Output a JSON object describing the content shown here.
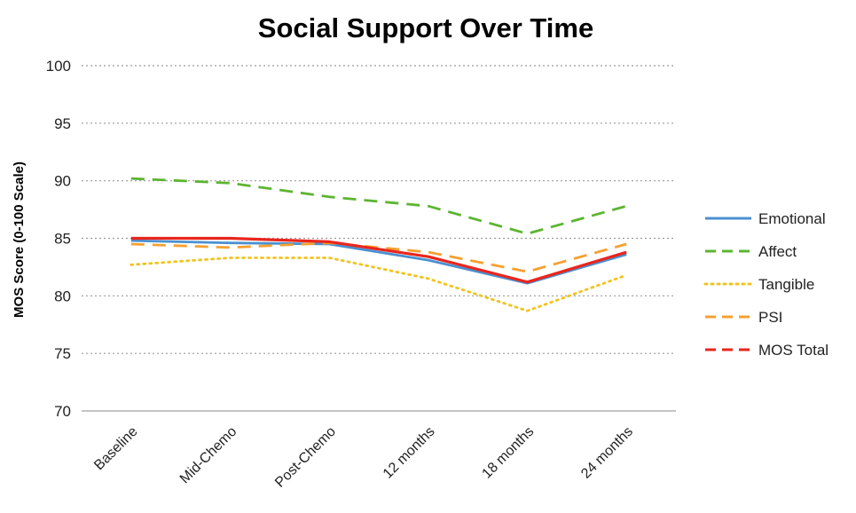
{
  "chart_data": {
    "type": "line",
    "title": "Social Support Over Time",
    "xlabel": "",
    "ylabel": "MOS Score (0-100 Scale)",
    "ylim": [
      70,
      100
    ],
    "yticks": [
      70,
      75,
      80,
      85,
      90,
      95,
      100
    ],
    "categories": [
      "Baseline",
      "Mid-Chemo",
      "Post-Chemo",
      "12 months",
      "18 months",
      "24 months"
    ],
    "grid": true,
    "legend_position": "right",
    "series": [
      {
        "name": "Emotional",
        "color": "#4a90d0",
        "dash": "solid",
        "values": [
          84.8,
          84.6,
          84.5,
          83.1,
          81.1,
          83.6
        ]
      },
      {
        "name": "Affect",
        "color": "#5cb531",
        "dash": "dashed",
        "values": [
          90.2,
          89.8,
          88.6,
          87.8,
          85.4,
          87.8
        ]
      },
      {
        "name": "Tangible",
        "color": "#f2c31e",
        "dash": "dotted",
        "values": [
          82.7,
          83.3,
          83.3,
          81.5,
          78.7,
          81.8
        ]
      },
      {
        "name": "PSI",
        "color": "#f5a030",
        "dash": "dashed",
        "values": [
          84.5,
          84.2,
          84.6,
          83.8,
          82.1,
          84.5
        ]
      },
      {
        "name": "MOS Total",
        "color": "#e8261e",
        "dash": "solid",
        "values": [
          85.0,
          85.0,
          84.7,
          83.4,
          81.2,
          83.8
        ]
      }
    ],
    "legend_style": {
      "MOS Total": "dashed"
    }
  }
}
